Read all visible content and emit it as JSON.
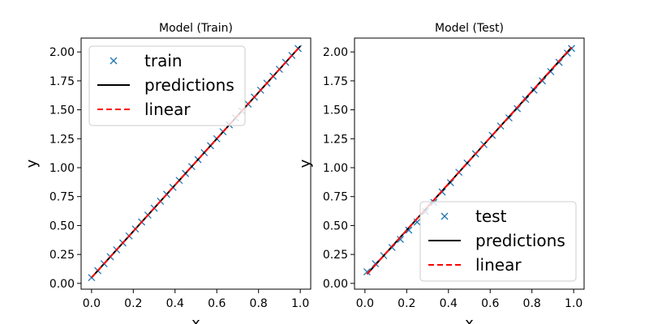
{
  "colors": {
    "points": "#1f77b4",
    "predictions": "#000000",
    "linear": "#ff0000",
    "legend_border": "#cccccc"
  },
  "chart_data": [
    {
      "type": "scatter",
      "title": "Model (Train)",
      "xlabel": "x",
      "ylabel": "y",
      "xlim": [
        -0.05,
        1.05
      ],
      "ylim": [
        -0.05,
        2.12
      ],
      "xticks": [
        "0.0",
        "0.2",
        "0.4",
        "0.6",
        "0.8",
        "1.0"
      ],
      "yticks": [
        "0.00",
        "0.25",
        "0.50",
        "0.75",
        "1.00",
        "1.25",
        "1.50",
        "1.75",
        "2.00"
      ],
      "grid": false,
      "legend_position": "top-left",
      "series": [
        {
          "name": "train",
          "kind": "markers",
          "marker": "x",
          "x": [
            0.0,
            0.03,
            0.06,
            0.09,
            0.12,
            0.15,
            0.18,
            0.21,
            0.24,
            0.27,
            0.3,
            0.33,
            0.36,
            0.39,
            0.42,
            0.45,
            0.48,
            0.51,
            0.54,
            0.57,
            0.6,
            0.63,
            0.66,
            0.69,
            0.72,
            0.75,
            0.78,
            0.81,
            0.84,
            0.87,
            0.9,
            0.93,
            0.96,
            0.99
          ],
          "y": [
            0.05,
            0.11,
            0.17,
            0.23,
            0.29,
            0.35,
            0.41,
            0.47,
            0.53,
            0.59,
            0.65,
            0.71,
            0.77,
            0.83,
            0.89,
            0.95,
            1.01,
            1.07,
            1.13,
            1.19,
            1.25,
            1.31,
            1.37,
            1.43,
            1.49,
            1.55,
            1.61,
            1.67,
            1.73,
            1.79,
            1.85,
            1.91,
            1.97,
            2.03
          ]
        },
        {
          "name": "predictions",
          "kind": "line",
          "dash": "solid",
          "x": [
            0.0,
            1.0
          ],
          "y": [
            0.05,
            2.05
          ]
        },
        {
          "name": "linear",
          "kind": "line",
          "dash": "dashed",
          "x": [
            0.0,
            1.0
          ],
          "y": [
            0.05,
            2.05
          ]
        }
      ]
    },
    {
      "type": "scatter",
      "title": "Model (Test)",
      "xlabel": "x",
      "ylabel": "y",
      "xlim": [
        -0.05,
        1.05
      ],
      "ylim": [
        -0.05,
        2.12
      ],
      "xticks": [
        "0.0",
        "0.2",
        "0.4",
        "0.6",
        "0.8",
        "1.0"
      ],
      "yticks": [
        "0.00",
        "0.25",
        "0.50",
        "0.75",
        "1.00",
        "1.25",
        "1.50",
        "1.75",
        "2.00"
      ],
      "grid": false,
      "legend_position": "bottom-right",
      "series": [
        {
          "name": "test",
          "kind": "markers",
          "marker": "x",
          "x": [
            0.01,
            0.05,
            0.09,
            0.13,
            0.17,
            0.21,
            0.25,
            0.29,
            0.33,
            0.37,
            0.41,
            0.45,
            0.49,
            0.53,
            0.57,
            0.61,
            0.65,
            0.69,
            0.73,
            0.77,
            0.81,
            0.85,
            0.89,
            0.93,
            0.97,
            0.99
          ],
          "y": [
            0.1,
            0.17,
            0.24,
            0.31,
            0.38,
            0.46,
            0.53,
            0.62,
            0.7,
            0.79,
            0.87,
            0.96,
            1.04,
            1.12,
            1.2,
            1.28,
            1.36,
            1.43,
            1.51,
            1.59,
            1.67,
            1.75,
            1.83,
            1.91,
            1.99,
            2.03
          ]
        },
        {
          "name": "predictions",
          "kind": "line",
          "dash": "solid",
          "x": [
            0.01,
            0.99
          ],
          "y": [
            0.08,
            2.04
          ]
        },
        {
          "name": "linear",
          "kind": "line",
          "dash": "dashed",
          "x": [
            0.01,
            0.99
          ],
          "y": [
            0.08,
            2.04
          ]
        }
      ]
    }
  ]
}
